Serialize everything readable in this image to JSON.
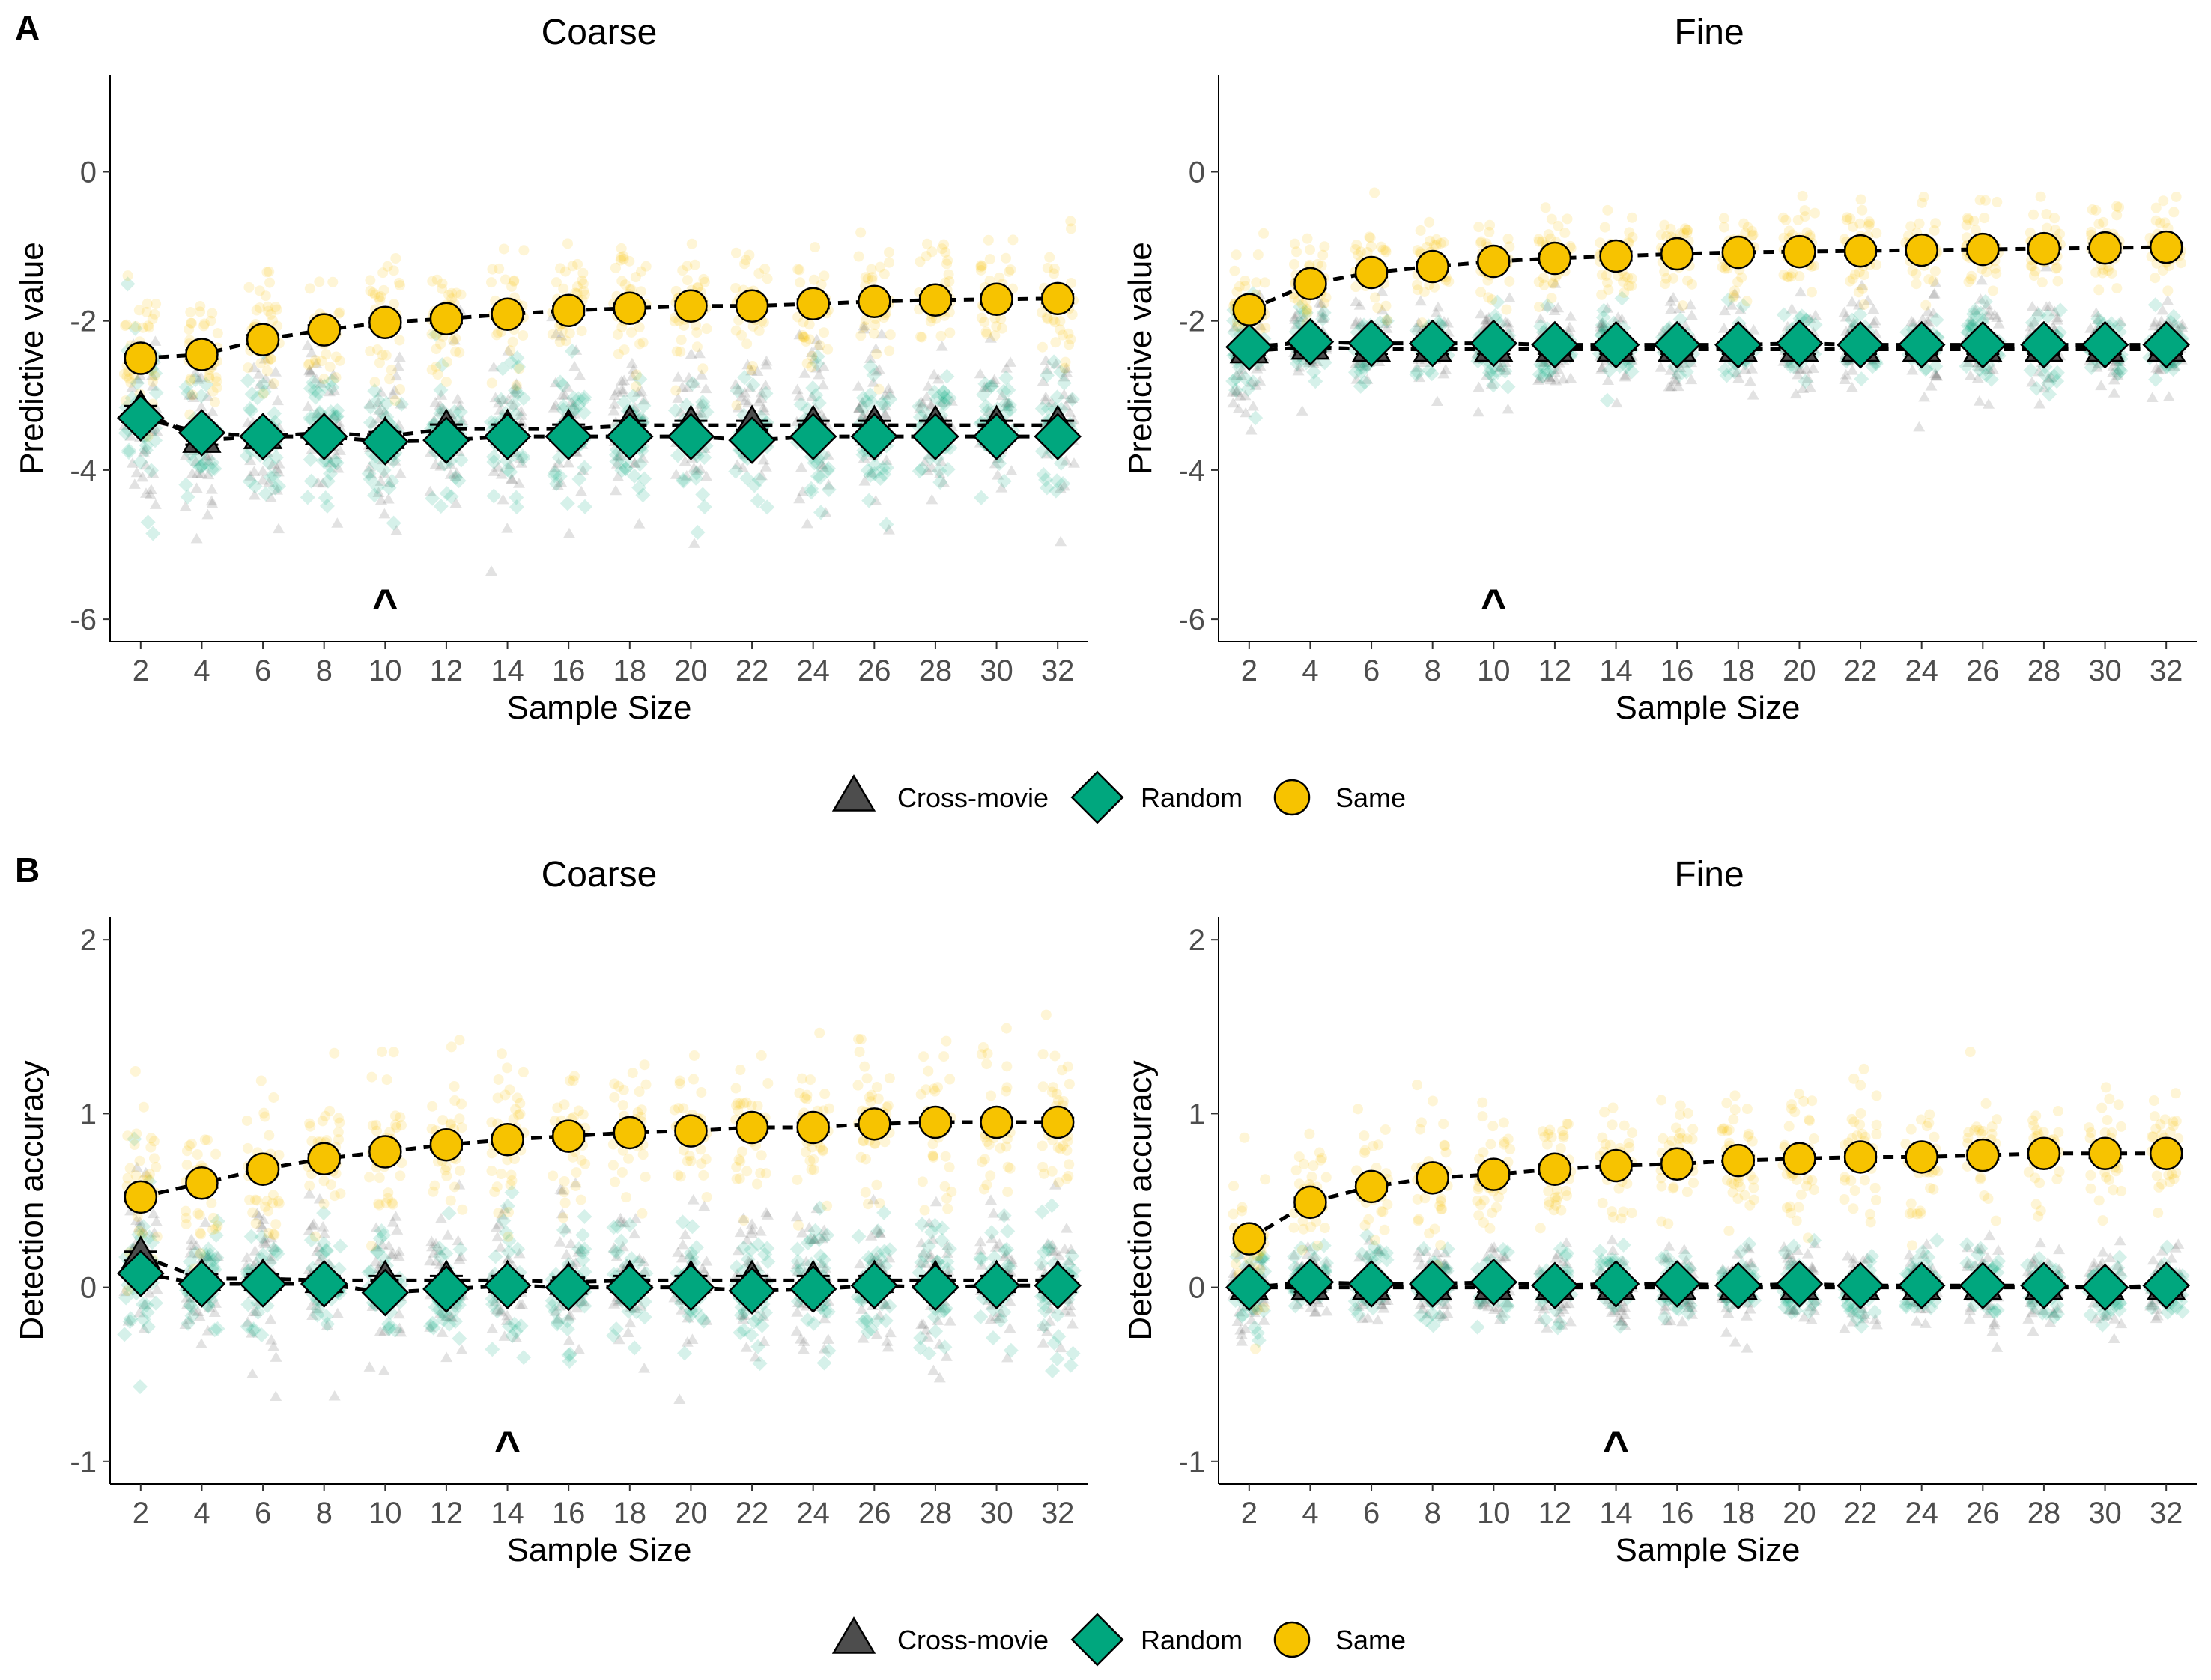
{
  "panels": [
    {
      "letter": "A"
    },
    {
      "letter": "B"
    }
  ],
  "legend": {
    "items": [
      {
        "label": "Cross-movie",
        "shape": "triangle",
        "color": "#4d4d4d"
      },
      {
        "label": "Random",
        "shape": "diamond",
        "color": "#00a77e"
      },
      {
        "label": "Same",
        "shape": "circle",
        "color": "#f7c300"
      }
    ]
  },
  "colors": {
    "cross": "#4d4d4d",
    "random": "#00a77e",
    "same": "#f7c300"
  },
  "chart_data": [
    {
      "type": "scatter",
      "panel": "A",
      "title": "Coarse",
      "xlabel": "Sample Size",
      "ylabel": "Predictive value",
      "x": [
        2,
        4,
        6,
        8,
        10,
        12,
        14,
        16,
        18,
        20,
        22,
        24,
        26,
        28,
        30,
        32
      ],
      "ylim": [
        -6.3,
        1.3
      ],
      "yticks": [
        -6,
        -4,
        -2,
        0
      ],
      "marker_label": "^",
      "marker_x": 10,
      "series": [
        {
          "name": "Cross-movie",
          "values": [
            -3.2,
            -3.6,
            -3.55,
            -3.5,
            -3.55,
            -3.45,
            -3.45,
            -3.45,
            -3.4,
            -3.4,
            -3.4,
            -3.4,
            -3.4,
            -3.4,
            -3.4,
            -3.4
          ]
        },
        {
          "name": "Random",
          "values": [
            -3.3,
            -3.5,
            -3.55,
            -3.55,
            -3.62,
            -3.6,
            -3.55,
            -3.55,
            -3.55,
            -3.55,
            -3.6,
            -3.55,
            -3.55,
            -3.55,
            -3.55,
            -3.55
          ]
        },
        {
          "name": "Same",
          "values": [
            -2.5,
            -2.45,
            -2.25,
            -2.12,
            -2.02,
            -1.97,
            -1.91,
            -1.86,
            -1.83,
            -1.8,
            -1.8,
            -1.77,
            -1.74,
            -1.72,
            -1.71,
            -1.7
          ]
        }
      ],
      "spread": {
        "Cross-movie": 0.55,
        "Random": 0.45,
        "Same": 0.4
      }
    },
    {
      "type": "scatter",
      "panel": "A",
      "title": "Fine",
      "xlabel": "Sample Size",
      "ylabel": "Predictive value",
      "x": [
        2,
        4,
        6,
        8,
        10,
        12,
        14,
        16,
        18,
        20,
        22,
        24,
        26,
        28,
        30,
        32
      ],
      "ylim": [
        -6.3,
        1.3
      ],
      "yticks": [
        -6,
        -4,
        -2,
        0
      ],
      "marker_label": "^",
      "marker_x": 10,
      "series": [
        {
          "name": "Cross-movie",
          "values": [
            -2.4,
            -2.35,
            -2.38,
            -2.38,
            -2.38,
            -2.38,
            -2.38,
            -2.38,
            -2.38,
            -2.38,
            -2.38,
            -2.38,
            -2.38,
            -2.38,
            -2.38,
            -2.38
          ]
        },
        {
          "name": "Random",
          "values": [
            -2.35,
            -2.28,
            -2.3,
            -2.3,
            -2.3,
            -2.32,
            -2.32,
            -2.32,
            -2.32,
            -2.3,
            -2.32,
            -2.32,
            -2.32,
            -2.32,
            -2.32,
            -2.32
          ]
        },
        {
          "name": "Same",
          "values": [
            -1.85,
            -1.5,
            -1.35,
            -1.27,
            -1.2,
            -1.16,
            -1.13,
            -1.1,
            -1.08,
            -1.07,
            -1.06,
            -1.05,
            -1.04,
            -1.03,
            -1.02,
            -1.01
          ]
        }
      ],
      "spread": {
        "Cross-movie": 0.35,
        "Random": 0.22,
        "Same": 0.3
      }
    },
    {
      "type": "scatter",
      "panel": "B",
      "title": "Coarse",
      "xlabel": "Sample Size",
      "ylabel": "Detection accuracy",
      "x": [
        2,
        4,
        6,
        8,
        10,
        12,
        14,
        16,
        18,
        20,
        22,
        24,
        26,
        28,
        30,
        32
      ],
      "ylim": [
        -1.13,
        2.13
      ],
      "yticks": [
        -1,
        0,
        1,
        2
      ],
      "marker_label": "^",
      "marker_x": 14,
      "series": [
        {
          "name": "Cross-movie",
          "values": [
            0.18,
            0.05,
            0.05,
            0.04,
            0.04,
            0.04,
            0.04,
            0.03,
            0.04,
            0.04,
            0.04,
            0.04,
            0.04,
            0.04,
            0.04,
            0.04
          ]
        },
        {
          "name": "Random",
          "values": [
            0.08,
            0.02,
            0.02,
            0.02,
            -0.03,
            -0.01,
            0.01,
            0.0,
            0.0,
            0.0,
            -0.02,
            -0.01,
            0.01,
            0.0,
            0.01,
            0.01
          ]
        },
        {
          "name": "Same",
          "values": [
            0.52,
            0.6,
            0.68,
            0.74,
            0.78,
            0.82,
            0.85,
            0.87,
            0.89,
            0.9,
            0.92,
            0.92,
            0.94,
            0.95,
            0.95,
            0.95
          ]
        }
      ],
      "spread": {
        "Cross-movie": 0.22,
        "Random": 0.18,
        "Same": 0.22
      }
    },
    {
      "type": "scatter",
      "panel": "B",
      "title": "Fine",
      "xlabel": "Sample Size",
      "ylabel": "Detection accuracy",
      "x": [
        2,
        4,
        6,
        8,
        10,
        12,
        14,
        16,
        18,
        20,
        22,
        24,
        26,
        28,
        30,
        32
      ],
      "ylim": [
        -1.13,
        2.13
      ],
      "yticks": [
        -1,
        0,
        1,
        2
      ],
      "marker_label": "^",
      "marker_x": 14,
      "series": [
        {
          "name": "Cross-movie",
          "values": [
            0.0,
            0.0,
            0.0,
            0.0,
            0.0,
            0.0,
            0.0,
            0.0,
            0.0,
            0.0,
            0.0,
            0.0,
            0.0,
            0.0,
            0.0,
            0.0
          ]
        },
        {
          "name": "Random",
          "values": [
            0.0,
            0.03,
            0.02,
            0.02,
            0.03,
            0.01,
            0.02,
            0.02,
            0.01,
            0.02,
            0.01,
            0.01,
            0.01,
            0.01,
            0.0,
            0.01
          ]
        },
        {
          "name": "Same",
          "values": [
            0.28,
            0.49,
            0.58,
            0.63,
            0.65,
            0.68,
            0.7,
            0.71,
            0.73,
            0.74,
            0.75,
            0.75,
            0.76,
            0.77,
            0.77,
            0.77
          ]
        }
      ],
      "spread": {
        "Cross-movie": 0.12,
        "Random": 0.1,
        "Same": 0.18
      }
    }
  ]
}
